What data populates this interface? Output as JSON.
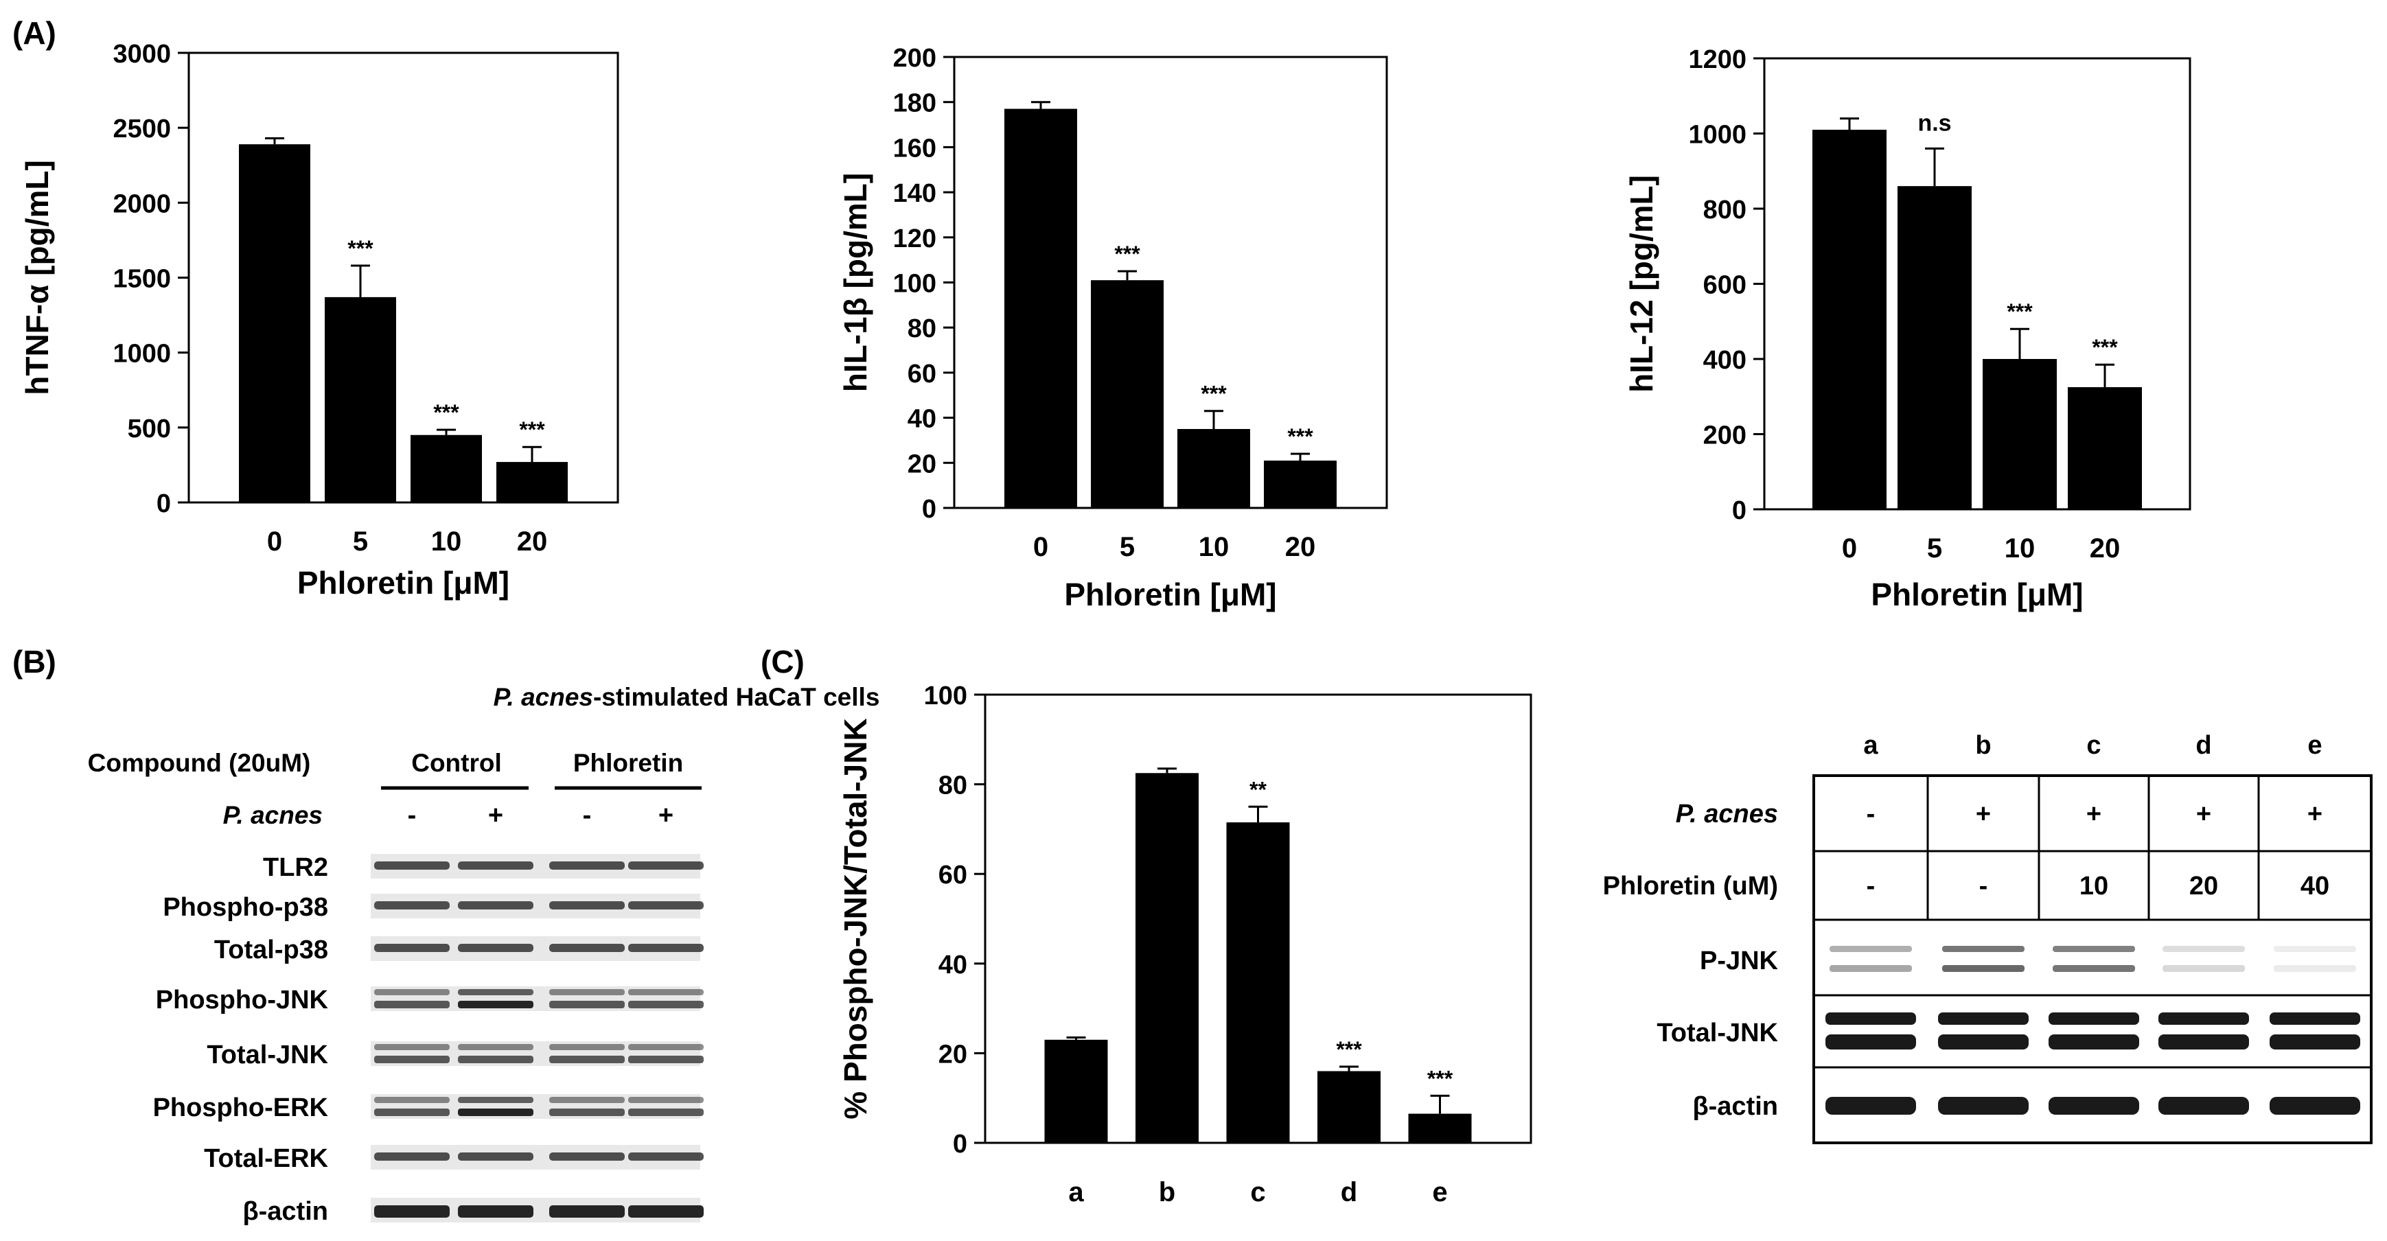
{
  "panel_labels": {
    "a": "(A)",
    "b": "(B)",
    "c": "(C)"
  },
  "colors": {
    "bar": "#000000",
    "axis": "#000000",
    "background": "#ffffff",
    "band": "#1a1a1a"
  },
  "chart_data": [
    {
      "id": "tnf",
      "type": "bar",
      "title": "",
      "xlabel": "Phloretin [μM]",
      "ylabel": "hTNF-α [pg/mL]",
      "categories": [
        "0",
        "5",
        "10",
        "20"
      ],
      "values": [
        2390,
        1370,
        450,
        270
      ],
      "errors": [
        40,
        210,
        35,
        100
      ],
      "significance": [
        "",
        "***",
        "***",
        "***"
      ],
      "ylim": [
        0,
        3000
      ],
      "yticks": [
        "0",
        "500",
        "1000",
        "1500",
        "2000",
        "2500",
        "3000"
      ],
      "grid": false
    },
    {
      "id": "il1b",
      "type": "bar",
      "title": "",
      "xlabel": "Phloretin [μM]",
      "ylabel": "hIL-1β [pg/mL]",
      "categories": [
        "0",
        "5",
        "10",
        "20"
      ],
      "values": [
        177,
        101,
        35,
        21
      ],
      "errors": [
        3,
        4,
        8,
        3
      ],
      "significance": [
        "",
        "***",
        "***",
        "***"
      ],
      "ylim": [
        0,
        200
      ],
      "yticks": [
        "0",
        "20",
        "40",
        "60",
        "80",
        "100",
        "120",
        "140",
        "160",
        "180",
        "200"
      ],
      "grid": false
    },
    {
      "id": "il12",
      "type": "bar",
      "title": "",
      "xlabel": "Phloretin [μM]",
      "ylabel": "hIL-12 [pg/mL]",
      "categories": [
        "0",
        "5",
        "10",
        "20"
      ],
      "values": [
        1010,
        860,
        400,
        325
      ],
      "errors": [
        30,
        100,
        80,
        60
      ],
      "significance": [
        "",
        "n.s",
        "***",
        "***"
      ],
      "ylim": [
        0,
        1200
      ],
      "yticks": [
        "0",
        "200",
        "400",
        "600",
        "800",
        "1000",
        "1200"
      ],
      "grid": false
    },
    {
      "id": "jnk",
      "type": "bar",
      "title": "",
      "xlabel": "",
      "ylabel": "% Phospho-JNK/Total-JNK",
      "categories": [
        "a",
        "b",
        "c",
        "d",
        "e"
      ],
      "values": [
        23,
        82.5,
        71.5,
        16,
        6.5
      ],
      "errors": [
        0.5,
        1,
        3.5,
        1,
        4
      ],
      "significance": [
        "",
        "",
        "**",
        "***",
        "***"
      ],
      "ylim": [
        0,
        100
      ],
      "yticks": [
        "0",
        "20",
        "40",
        "60",
        "80",
        "100"
      ],
      "grid": false
    }
  ],
  "blot_b": {
    "title_italic": "P. acnes",
    "title_rest": "-stimulated HaCaT cells",
    "compound_label": "Compound (20uM)",
    "group1": "Control",
    "group2": "Phloretin",
    "stim_label": "P. acnes",
    "stim_signs": [
      "-",
      "+",
      "-",
      "+"
    ],
    "rows": [
      "TLR2",
      "Phospho-p38",
      "Total-p38",
      "Phospho-JNK",
      "Total-JNK",
      "Phospho-ERK",
      "Total-ERK",
      "β-actin"
    ]
  },
  "blot_c": {
    "lanes": [
      "a",
      "b",
      "c",
      "d",
      "e"
    ],
    "stim_label": "P. acnes",
    "stim_signs": [
      "-",
      "+",
      "+",
      "+",
      "+"
    ],
    "dose_label": "Phloretin (uM)",
    "doses": [
      "-",
      "-",
      "10",
      "20",
      "40"
    ],
    "rows": [
      "P-JNK",
      "Total-JNK",
      "β-actin"
    ]
  }
}
